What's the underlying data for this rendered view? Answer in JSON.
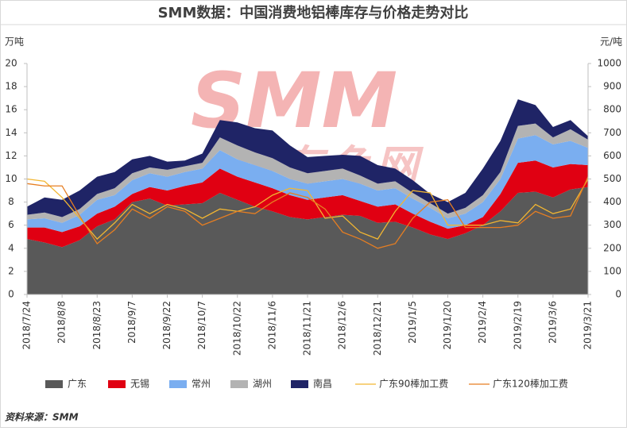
{
  "chart_data": {
    "type": "stacked-area-line",
    "title": "SMM数据：中国消费地铝棒库存与价格走势对比",
    "ylabel": "万吨",
    "y2label": "元/吨",
    "watermark": {
      "logo": "SMM",
      "text": "上海有色网"
    },
    "source": "资料来源：SMM",
    "categories": [
      "2018/7/24",
      null,
      "2018/8/8",
      null,
      "2018/8/23",
      null,
      "2018/9/7",
      null,
      "2018/9/22",
      null,
      "2018/10/7",
      null,
      "2018/10/22",
      null,
      "2018/11/6",
      null,
      "2018/11/21",
      null,
      "2018/12/6",
      null,
      "2018/12/21",
      null,
      "2019/1/5",
      null,
      "2019/1/20",
      null,
      "2019/2/4",
      null,
      "2019/2/19",
      null,
      "2019/3/6",
      null,
      "2019/3/21"
    ],
    "ylim": [
      0,
      20
    ],
    "yticks": [
      0,
      2,
      4,
      6,
      8,
      10,
      12,
      14,
      16,
      18,
      20
    ],
    "y2lim": [
      0,
      1000
    ],
    "y2ticks": [
      0,
      100,
      200,
      300,
      400,
      500,
      600,
      700,
      800,
      900,
      1000
    ],
    "series": [
      {
        "name": "广东",
        "kind": "area",
        "color": "#595959",
        "values": [
          4.8,
          4.5,
          4.1,
          4.7,
          5.9,
          6.5,
          8.0,
          8.3,
          7.7,
          7.8,
          7.9,
          8.8,
          8.2,
          7.6,
          7.2,
          6.7,
          6.5,
          6.7,
          6.9,
          6.8,
          6.2,
          6.3,
          5.8,
          5.2,
          4.8,
          5.3,
          6.0,
          7.2,
          8.8,
          8.9,
          8.4,
          9.1,
          9.3
        ]
      },
      {
        "name": "无锡",
        "kind": "area",
        "color": "#e00012",
        "values": [
          1.0,
          1.3,
          1.3,
          1.2,
          1.1,
          1.1,
          0.7,
          1.0,
          1.3,
          1.6,
          1.8,
          2.1,
          2.0,
          2.1,
          2.0,
          1.9,
          1.7,
          1.7,
          1.7,
          1.3,
          1.4,
          1.5,
          1.2,
          1.1,
          0.9,
          0.7,
          0.7,
          1.5,
          2.6,
          2.7,
          2.6,
          2.2,
          1.9
        ]
      },
      {
        "name": "常州",
        "kind": "area",
        "color": "#7aaef0",
        "values": [
          0.7,
          0.8,
          0.8,
          1.0,
          1.2,
          1.0,
          1.2,
          1.2,
          1.2,
          1.2,
          1.2,
          1.6,
          1.5,
          1.5,
          1.5,
          1.4,
          1.4,
          1.4,
          1.4,
          1.5,
          1.4,
          1.4,
          1.3,
          1.2,
          0.9,
          1.0,
          1.3,
          1.3,
          2.1,
          2.2,
          2.0,
          2.0,
          1.5
        ]
      },
      {
        "name": "湖州",
        "kind": "area",
        "color": "#b3b3b3",
        "values": [
          0.4,
          0.5,
          0.5,
          0.5,
          0.5,
          0.6,
          0.6,
          0.5,
          0.6,
          0.5,
          0.5,
          1.1,
          1.2,
          1.1,
          1.1,
          1.0,
          0.9,
          0.9,
          0.9,
          0.7,
          0.6,
          0.6,
          0.5,
          0.4,
          0.4,
          0.5,
          0.6,
          0.6,
          1.1,
          1.0,
          0.6,
          1.0,
          0.7
        ]
      },
      {
        "name": "南昌",
        "kind": "area",
        "color": "#1f2466",
        "values": [
          0.7,
          1.3,
          1.5,
          1.6,
          1.5,
          1.4,
          1.2,
          1.0,
          0.7,
          0.5,
          0.8,
          1.5,
          2.0,
          2.1,
          2.4,
          1.9,
          1.4,
          1.3,
          1.2,
          1.7,
          1.6,
          1.1,
          1.1,
          0.8,
          1.0,
          1.3,
          2.3,
          2.7,
          2.3,
          1.6,
          0.9,
          0.8,
          0.3
        ]
      },
      {
        "name": "广东90棒加工费",
        "kind": "line",
        "axis": "y2",
        "color": "#f2b632",
        "values": [
          500,
          490,
          420,
          330,
          240,
          310,
          390,
          350,
          390,
          370,
          330,
          370,
          360,
          380,
          430,
          460,
          450,
          330,
          340,
          270,
          240,
          360,
          450,
          440,
          300,
          300,
          300,
          320,
          310,
          390,
          350,
          370,
          500
        ]
      },
      {
        "name": "广东120棒加工费",
        "kind": "line",
        "axis": "y2",
        "color": "#e67e22",
        "values": [
          480,
          470,
          470,
          340,
          220,
          280,
          370,
          330,
          380,
          360,
          300,
          330,
          360,
          350,
          400,
          440,
          420,
          370,
          270,
          240,
          200,
          220,
          330,
          400,
          410,
          290,
          290,
          290,
          300,
          360,
          330,
          340,
          510
        ]
      }
    ]
  }
}
